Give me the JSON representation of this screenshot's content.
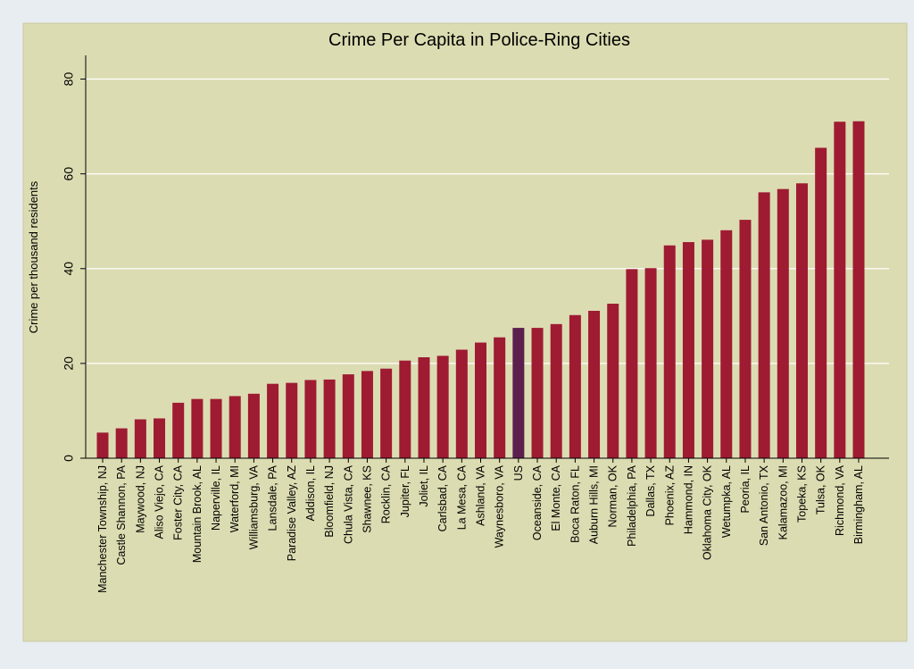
{
  "chart_data": {
    "type": "bar",
    "title": "Crime Per Capita in Police-Ring Cities",
    "xlabel": "",
    "ylabel": "Crime per thousand residents",
    "ylim": [
      0,
      85
    ],
    "yticks": [
      0,
      20,
      40,
      60,
      80
    ],
    "grid": true,
    "colors": {
      "bar": "#9e1b32",
      "highlight": "#5b1f4e",
      "plot_background": "#dcdcb2",
      "outer_background": "#e7edf1",
      "gridline": "#ffffff"
    },
    "highlight_category": "US",
    "categories": [
      "Manchester Township, NJ",
      "Castle Shannon, PA",
      "Maywood, NJ",
      "Aliso Viejo, CA",
      "Foster City, CA",
      "Mountain Brook, AL",
      "Naperville, IL",
      "Waterford, MI",
      "Williamsburg, VA",
      "Lansdale, PA",
      "Paradise Valley, AZ",
      "Addison, IL",
      "Bloomfield, NJ",
      "Chula Vista, CA",
      "Shawnee, KS",
      "Rocklin, CA",
      "Jupiter, FL",
      "Joliet, IL",
      "Carlsbad, CA",
      "La Mesa, CA",
      "Ashland, VA",
      "Waynesboro, VA",
      "US",
      "Oceanside, CA",
      "El Monte, CA",
      "Boca Raton, FL",
      "Auburn Hills, MI",
      "Norman, OK",
      "Philadelphia, PA",
      "Dallas, TX",
      "Phoenix, AZ",
      "Hammond, IN",
      "Oklahoma City, OK",
      "Wetumpka, AL",
      "Peoria, IL",
      "San Antonio, TX",
      "Kalamazoo, MI",
      "Topeka, KS",
      "Tulsa, OK",
      "Richmond, VA",
      "Birmingham, AL"
    ],
    "values": [
      5.4,
      6.3,
      8.2,
      8.4,
      11.7,
      12.5,
      12.5,
      13.1,
      13.6,
      15.7,
      15.9,
      16.5,
      16.6,
      17.7,
      18.4,
      18.9,
      20.6,
      21.3,
      21.6,
      22.9,
      24.4,
      25.5,
      27.5,
      27.5,
      28.3,
      30.2,
      31.1,
      32.6,
      39.9,
      40.1,
      44.9,
      45.6,
      46.1,
      48.1,
      50.3,
      56.1,
      56.8,
      58.0,
      65.5,
      71.0,
      71.1
    ]
  }
}
